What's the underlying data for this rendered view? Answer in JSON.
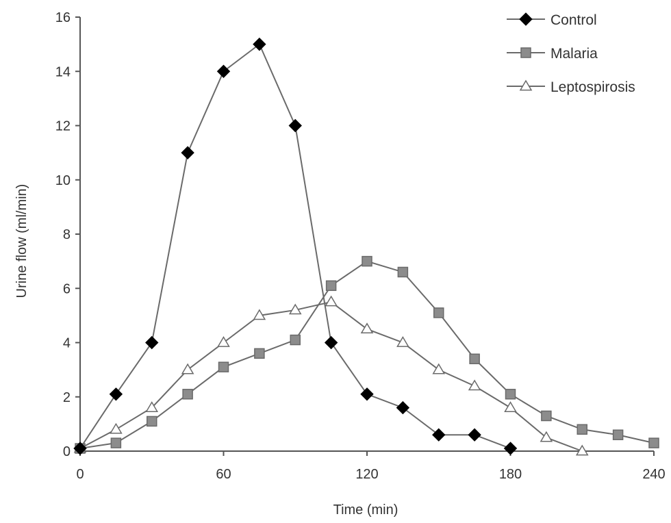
{
  "chart_data": {
    "type": "line",
    "title": "",
    "xlabel": "Time (min)",
    "ylabel": "Urine flow (ml/min)",
    "xlim": [
      0,
      240
    ],
    "ylim": [
      0,
      16
    ],
    "xticks": [
      0,
      60,
      120,
      180,
      240
    ],
    "yticks": [
      0,
      2,
      4,
      6,
      8,
      10,
      12,
      14,
      16
    ],
    "grid": false,
    "legend_position": "top-right",
    "series": [
      {
        "name": "Control",
        "marker": "diamond",
        "color": "#000000",
        "x": [
          0,
          15,
          30,
          45,
          60,
          75,
          90,
          105,
          120,
          135,
          150,
          165,
          180
        ],
        "y": [
          0.1,
          2.1,
          4.0,
          11.0,
          14.0,
          15.0,
          12.0,
          4.0,
          2.1,
          1.6,
          0.6,
          0.6,
          0.1
        ]
      },
      {
        "name": "Malaria",
        "marker": "square",
        "color": "#8c8c8c",
        "x": [
          0,
          15,
          30,
          45,
          60,
          75,
          90,
          105,
          120,
          135,
          150,
          165,
          180,
          195,
          210,
          225,
          240
        ],
        "y": [
          0.1,
          0.3,
          1.1,
          2.1,
          3.1,
          3.6,
          4.1,
          6.1,
          7.0,
          6.6,
          5.1,
          3.4,
          2.1,
          1.3,
          0.8,
          0.6,
          0.3
        ]
      },
      {
        "name": "Leptospirosis",
        "marker": "triangle",
        "color": "#ffffff",
        "x": [
          0,
          15,
          30,
          45,
          60,
          75,
          90,
          105,
          120,
          135,
          150,
          165,
          180,
          195,
          210
        ],
        "y": [
          0.1,
          0.8,
          1.6,
          3.0,
          4.0,
          5.0,
          5.2,
          5.5,
          4.5,
          4.0,
          3.0,
          2.4,
          1.6,
          0.5,
          0.0
        ]
      }
    ]
  }
}
